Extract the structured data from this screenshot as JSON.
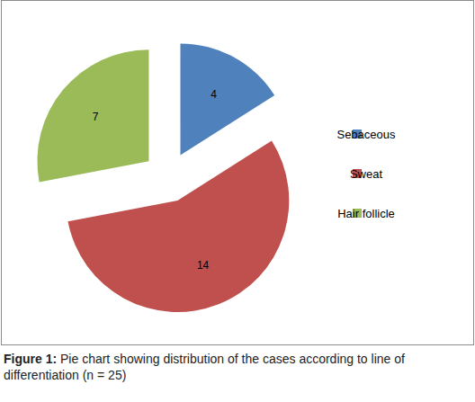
{
  "chart_data": {
    "type": "pie",
    "categories": [
      "Sebaceous",
      "Sweat",
      "Hair follicle"
    ],
    "values": [
      4,
      14,
      7
    ],
    "colors": [
      "#4f81bd",
      "#c0504d",
      "#9bbb59"
    ],
    "data_labels": true,
    "legend": "right",
    "caption": {
      "label": "Figure 1:",
      "text": "Pie chart showing distribution of the cases according to line of differentiation (n = 25)"
    }
  }
}
